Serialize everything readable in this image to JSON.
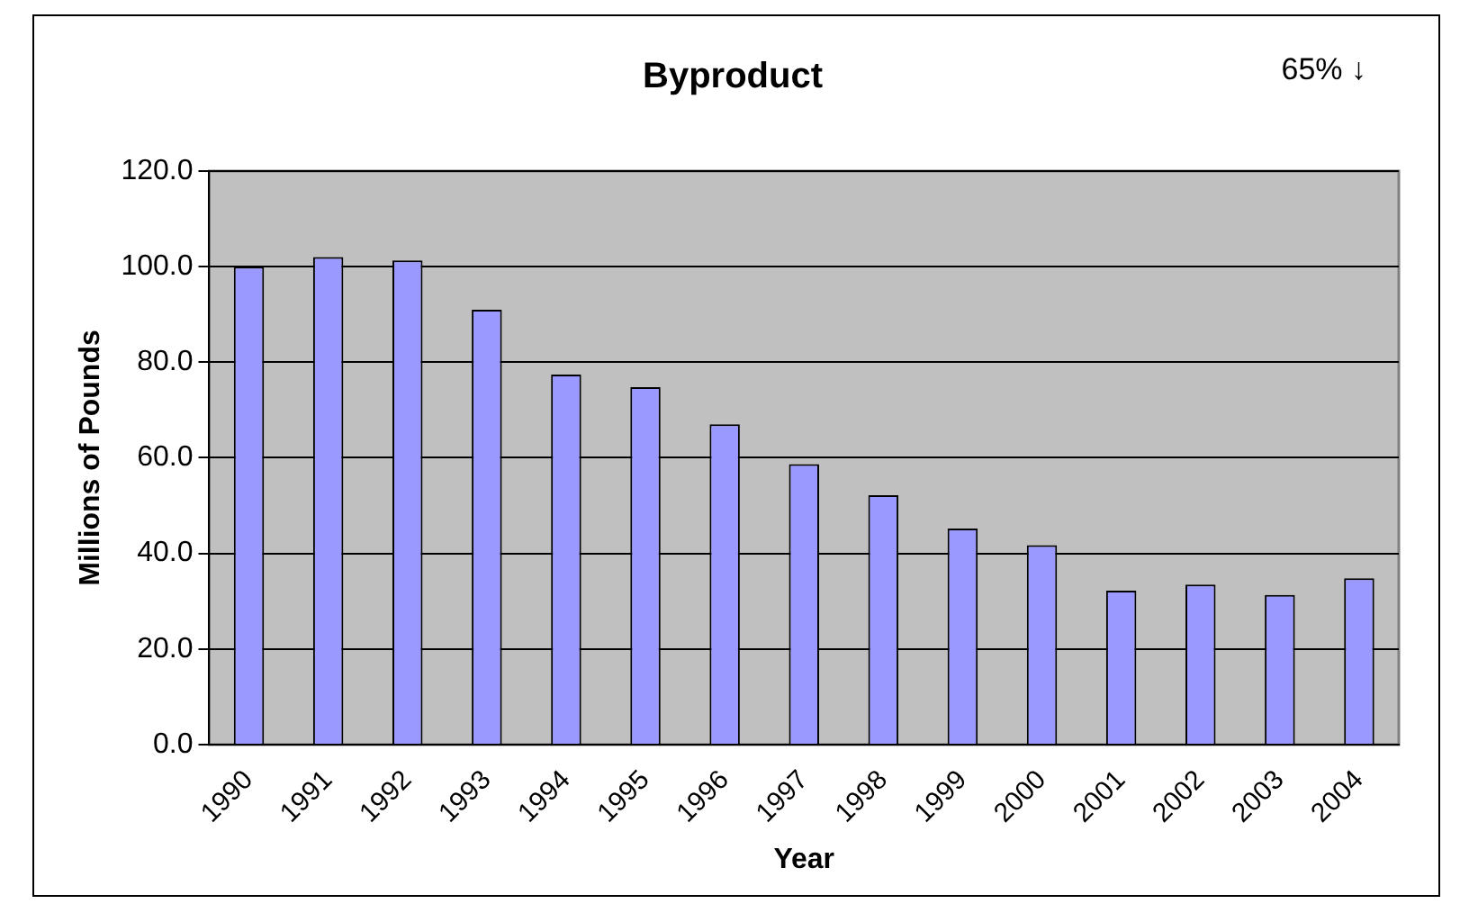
{
  "chart_data": {
    "type": "bar",
    "title": "Byproduct",
    "xlabel": "Year",
    "ylabel": "Millions of Pounds",
    "annotations": [
      "65% ↓"
    ],
    "categories": [
      "1990",
      "1991",
      "1992",
      "1993",
      "1994",
      "1995",
      "1996",
      "1997",
      "1998",
      "1999",
      "2000",
      "2001",
      "2002",
      "2003",
      "2004"
    ],
    "values": [
      100,
      102,
      101.3,
      91,
      77.4,
      74.8,
      67,
      58.7,
      52.2,
      45.2,
      41.7,
      32.2,
      33.5,
      31.3,
      34.8
    ],
    "color": "#9999ff",
    "ylim": [
      0,
      120
    ],
    "yticks": [
      {
        "value": 0,
        "label": "0.0"
      },
      {
        "value": 20,
        "label": "20.0"
      },
      {
        "value": 40,
        "label": "40.0"
      },
      {
        "value": 60,
        "label": "60.0"
      },
      {
        "value": 80,
        "label": "80.0"
      },
      {
        "value": 100,
        "label": "100.0"
      },
      {
        "value": 120,
        "label": "120.0"
      }
    ],
    "grid": "y",
    "legend": false
  }
}
